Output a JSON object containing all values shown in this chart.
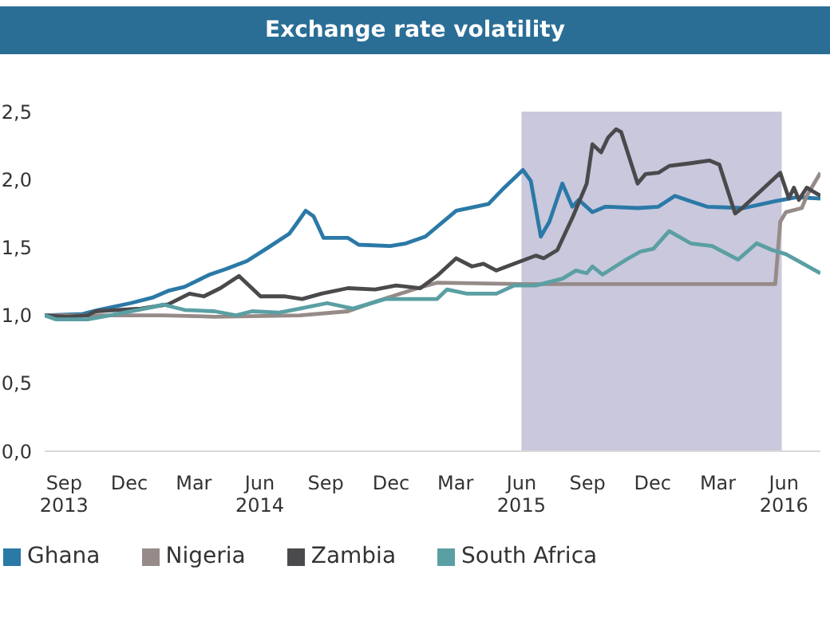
{
  "chart_data": {
    "type": "line",
    "title": "Exchange rate volatility",
    "xlim": [
      "2013-08-05",
      "2016-07-22"
    ],
    "xticks": [
      {
        "value": "2013-09-01",
        "label": "Sep 2013"
      },
      {
        "value": "2013-12-01",
        "label": "Dec"
      },
      {
        "value": "2014-03-01",
        "label": "Mar"
      },
      {
        "value": "2014-06-01",
        "label": "Jun 2014"
      },
      {
        "value": "2014-09-01",
        "label": "Sep"
      },
      {
        "value": "2014-12-01",
        "label": "Dec"
      },
      {
        "value": "2015-03-01",
        "label": "Mar"
      },
      {
        "value": "2015-06-01",
        "label": "Jun 2015"
      },
      {
        "value": "2015-09-01",
        "label": "Sep"
      },
      {
        "value": "2015-12-01",
        "label": "Dec"
      },
      {
        "value": "2016-03-01",
        "label": "Mar"
      },
      {
        "value": "2016-06-01",
        "label": "Jun 2016"
      }
    ],
    "ylim": [
      0,
      2.5
    ],
    "yticks": [
      {
        "value": 0,
        "label": "0,0"
      },
      {
        "value": 0.5,
        "label": "0,5"
      },
      {
        "value": 1,
        "label": "1,0"
      },
      {
        "value": 1.5,
        "label": "1,5"
      },
      {
        "value": 2,
        "label": "2,0"
      },
      {
        "value": 2.5,
        "label": "2,5"
      }
    ],
    "grid": false,
    "legend": "bottom",
    "marker": "none",
    "line_style": "solid",
    "bands": [
      {
        "axis": "x",
        "from": "2015-06-01",
        "to": "2016-05-29",
        "color": "#c9c8dc"
      }
    ],
    "series": [
      {
        "name": "Ghana",
        "color": "#2b79a7",
        "x": [
          "2013-08-05",
          "2013-09-27",
          "2013-10-19",
          "2013-12-03",
          "2014-01-02",
          "2014-01-24",
          "2014-02-16",
          "2014-03-23",
          "2014-04-14",
          "2014-05-14",
          "2014-06-13",
          "2014-07-12",
          "2014-07-23",
          "2014-08-04",
          "2014-08-15",
          "2014-08-29",
          "2014-10-02",
          "2014-10-17",
          "2014-11-30",
          "2014-12-22",
          "2015-01-18",
          "2015-03-02",
          "2015-04-16",
          "2015-05-08",
          "2015-06-03",
          "2015-06-14",
          "2015-06-28",
          "2015-07-10",
          "2015-07-28",
          "2015-08-11",
          "2015-08-20",
          "2015-09-08",
          "2015-09-26",
          "2015-11-10",
          "2015-12-09",
          "2016-01-01",
          "2016-01-23",
          "2016-02-15",
          "2016-04-06",
          "2016-05-20",
          "2016-06-19",
          "2016-07-22"
        ],
        "values": [
          1.0,
          1.01,
          1.04,
          1.09,
          1.13,
          1.18,
          1.21,
          1.3,
          1.34,
          1.4,
          1.5,
          1.6,
          1.68,
          1.77,
          1.73,
          1.57,
          1.57,
          1.52,
          1.51,
          1.53,
          1.58,
          1.77,
          1.82,
          1.94,
          2.07,
          1.99,
          1.58,
          1.69,
          1.97,
          1.8,
          1.85,
          1.76,
          1.8,
          1.79,
          1.8,
          1.88,
          1.84,
          1.8,
          1.79,
          1.84,
          1.87,
          1.86
        ]
      },
      {
        "name": "Nigeria",
        "color": "#968b88",
        "x": [
          "2013-08-05",
          "2014-01-17",
          "2014-03-30",
          "2014-07-27",
          "2014-10-02",
          "2014-11-09",
          "2015-01-07",
          "2015-02-03",
          "2015-06-03",
          "2016-05-20",
          "2016-05-27",
          "2016-06-04",
          "2016-06-26",
          "2016-07-03",
          "2016-07-22"
        ],
        "values": [
          1.0,
          1.0,
          0.99,
          1.0,
          1.03,
          1.1,
          1.2,
          1.24,
          1.23,
          1.23,
          1.69,
          1.76,
          1.79,
          1.88,
          2.05
        ]
      },
      {
        "name": "Zambia",
        "color": "#4a4a4d",
        "x": [
          "2013-08-05",
          "2013-09-05",
          "2013-10-04",
          "2013-10-15",
          "2013-12-17",
          "2014-01-24",
          "2014-02-23",
          "2014-03-15",
          "2014-04-07",
          "2014-05-03",
          "2014-06-02",
          "2014-07-05",
          "2014-07-30",
          "2014-08-26",
          "2014-10-02",
          "2014-11-09",
          "2014-12-08",
          "2015-01-11",
          "2015-02-03",
          "2015-03-02",
          "2015-03-24",
          "2015-04-09",
          "2015-04-27",
          "2015-05-22",
          "2015-06-21",
          "2015-07-02",
          "2015-07-21",
          "2015-08-12",
          "2015-08-31",
          "2015-09-08",
          "2015-09-20",
          "2015-09-30",
          "2015-10-11",
          "2015-10-18",
          "2015-11-10",
          "2015-11-21",
          "2015-12-09",
          "2015-12-24",
          "2016-01-23",
          "2016-02-18",
          "2016-03-03",
          "2016-03-25",
          "2016-04-06",
          "2016-05-27",
          "2016-06-08",
          "2016-06-15",
          "2016-06-22",
          "2016-07-03",
          "2016-07-22"
        ],
        "values": [
          1.0,
          0.99,
          1.0,
          1.03,
          1.05,
          1.08,
          1.16,
          1.14,
          1.2,
          1.29,
          1.14,
          1.14,
          1.12,
          1.16,
          1.2,
          1.19,
          1.22,
          1.2,
          1.29,
          1.42,
          1.36,
          1.38,
          1.33,
          1.38,
          1.44,
          1.42,
          1.48,
          1.73,
          1.97,
          2.26,
          2.2,
          2.31,
          2.37,
          2.35,
          1.97,
          2.04,
          2.05,
          2.1,
          2.12,
          2.14,
          2.11,
          1.75,
          1.8,
          2.05,
          1.86,
          1.94,
          1.85,
          1.94,
          1.88
        ]
      },
      {
        "name": "South Africa",
        "color": "#5a9fa3",
        "x": [
          "2013-08-05",
          "2013-08-21",
          "2013-10-04",
          "2013-11-04",
          "2014-01-02",
          "2014-01-17",
          "2014-02-16",
          "2014-03-30",
          "2014-04-29",
          "2014-05-21",
          "2014-06-28",
          "2014-07-27",
          "2014-09-03",
          "2014-10-09",
          "2014-11-23",
          "2015-01-07",
          "2015-02-03",
          "2015-02-17",
          "2015-03-17",
          "2015-04-27",
          "2015-05-22",
          "2015-06-21",
          "2015-07-28",
          "2015-08-16",
          "2015-08-31",
          "2015-09-08",
          "2015-09-22",
          "2015-10-25",
          "2015-11-14",
          "2015-12-02",
          "2015-12-24",
          "2016-01-23",
          "2016-02-22",
          "2016-03-29",
          "2016-04-24",
          "2016-05-16",
          "2016-06-04",
          "2016-07-22"
        ],
        "values": [
          1.0,
          0.97,
          0.97,
          1.0,
          1.06,
          1.08,
          1.04,
          1.03,
          1.0,
          1.03,
          1.02,
          1.05,
          1.09,
          1.05,
          1.12,
          1.12,
          1.12,
          1.19,
          1.16,
          1.16,
          1.22,
          1.22,
          1.27,
          1.33,
          1.31,
          1.36,
          1.3,
          1.41,
          1.47,
          1.49,
          1.62,
          1.53,
          1.51,
          1.41,
          1.53,
          1.48,
          1.45,
          1.31
        ]
      }
    ]
  }
}
